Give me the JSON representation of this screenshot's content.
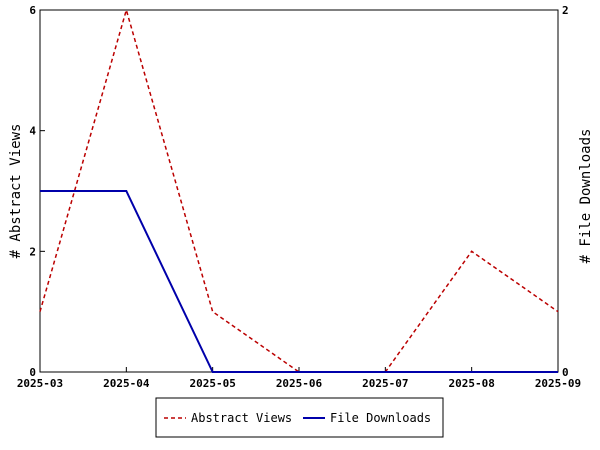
{
  "chart_data": {
    "type": "line",
    "x": [
      "2025-03",
      "2025-04",
      "2025-05",
      "2025-06",
      "2025-07",
      "2025-08",
      "2025-09"
    ],
    "series": [
      {
        "name": "Abstract Views",
        "axis": "left",
        "color": "#bb0000",
        "style": "dashed",
        "values": [
          1,
          6,
          1,
          0,
          0,
          2,
          1
        ]
      },
      {
        "name": "File Downloads",
        "axis": "right",
        "color": "#0000aa",
        "style": "solid",
        "values": [
          1,
          1,
          0,
          0,
          0,
          0,
          0
        ]
      }
    ],
    "ylabel": "# Abstract Views",
    "y2label": "# File Downloads",
    "ylim": [
      0,
      6
    ],
    "y2lim": [
      0,
      2
    ],
    "yticks": [
      "0",
      "2",
      "4",
      "6"
    ],
    "y2ticks": [
      "0",
      "2"
    ],
    "grid": false,
    "legend_position": "bottom-center"
  }
}
